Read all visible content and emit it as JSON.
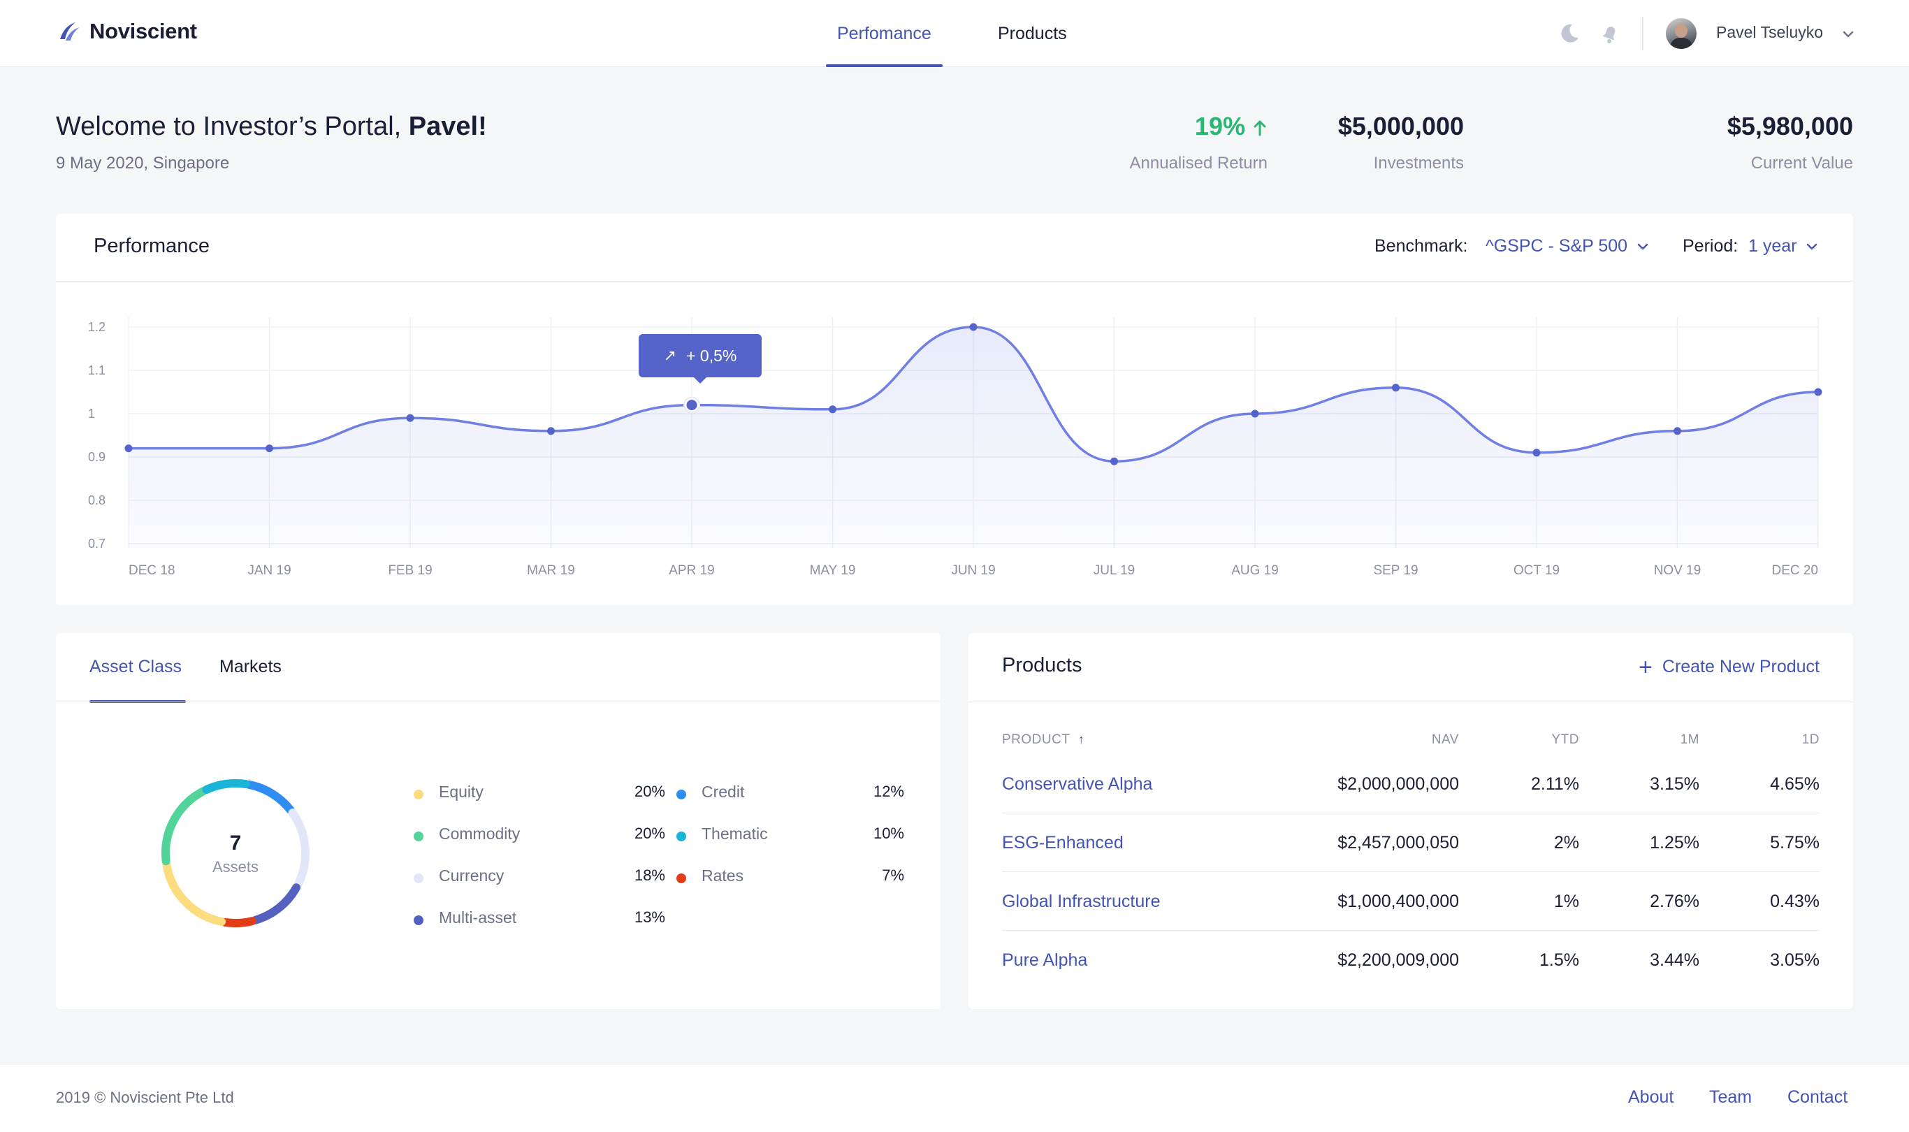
{
  "header": {
    "brand": "Noviscient",
    "nav": [
      {
        "label": "Perfomance",
        "active": true
      },
      {
        "label": "Products",
        "active": false
      }
    ],
    "icons": [
      "moon-icon",
      "bell-icon",
      "chevron-down-icon"
    ],
    "user_name": "Pavel Tseluyko"
  },
  "welcome": {
    "title_prefix": "Welcome to Investor’s Portal, ",
    "title_name": "Pavel!",
    "subtitle": "9 May 2020, Singapore"
  },
  "stats": [
    {
      "value": "19%",
      "label": "Annualised Return"
    },
    {
      "value": "$5,000,000",
      "label": "Investments"
    },
    {
      "value": "$5,980,000",
      "label": "Current Value"
    }
  ],
  "performance": {
    "title": "Performance",
    "benchmark_label": "Benchmark:",
    "benchmark_value": "^GSPC - S&P 500",
    "period_label": "Period:",
    "period_value": "1 year",
    "tooltip": "+ 0,5%"
  },
  "chart_data": {
    "type": "area",
    "title": "Performance",
    "xlabel": "",
    "ylabel": "",
    "categories": [
      "DEC 18",
      "JAN 19",
      "FEB 19",
      "MAR 19",
      "APR 19",
      "MAY 19",
      "JUN 19",
      "JUL 19",
      "AUG 19",
      "SEP 19",
      "OCT 19",
      "NOV 19",
      "DEC 20"
    ],
    "values": [
      0.92,
      0.92,
      0.99,
      0.96,
      1.02,
      1.01,
      1.2,
      0.89,
      1.0,
      1.06,
      0.91,
      0.96,
      1.05
    ],
    "y_ticks": [
      "0.7",
      "0.8",
      "0.9",
      "1",
      "1.1",
      "1.2"
    ],
    "ylim": [
      0.7,
      1.2
    ],
    "grid": true,
    "highlight_index": 4,
    "color": "#6f7fe3"
  },
  "assets": {
    "tabs": [
      {
        "label": "Asset Class",
        "active": true
      },
      {
        "label": "Markets",
        "active": false
      }
    ],
    "total": "7",
    "total_label": "Assets",
    "items": [
      {
        "name": "Equity",
        "pct": "20%",
        "value": 20,
        "color": "#fbdc7f"
      },
      {
        "name": "Commodity",
        "pct": "20%",
        "value": 20,
        "color": "#52d39a"
      },
      {
        "name": "Currency",
        "pct": "18%",
        "value": 18,
        "color": "#e3e6f8"
      },
      {
        "name": "Multi-asset",
        "pct": "13%",
        "value": 13,
        "color": "#5461c0"
      },
      {
        "name": "Credit",
        "pct": "12%",
        "value": 12,
        "color": "#2f8cf0"
      },
      {
        "name": "Thematic",
        "pct": "10%",
        "value": 10,
        "color": "#19b4d8"
      },
      {
        "name": "Rates",
        "pct": "7%",
        "value": 7,
        "color": "#e23d16"
      }
    ]
  },
  "products": {
    "title": "Products",
    "create_label": "Create New Product",
    "columns": [
      "PRODUCT",
      "NAV",
      "YTD",
      "1M",
      "1D"
    ],
    "rows": [
      {
        "name": "Conservative Alpha",
        "nav": "$2,000,000,000",
        "ytd": "2.11%",
        "m1": "3.15%",
        "d1": "4.65%"
      },
      {
        "name": "ESG-Enhanced",
        "nav": "$2,457,000,050",
        "ytd": "2%",
        "m1": "1.25%",
        "d1": "5.75%"
      },
      {
        "name": "Global Infrastructure",
        "nav": "$1,000,400,000",
        "ytd": "1%",
        "m1": "2.76%",
        "d1": "0.43%"
      },
      {
        "name": "Pure Alpha",
        "nav": "$2,200,009,000",
        "ytd": "1.5%",
        "m1": "3.44%",
        "d1": "3.05%"
      }
    ]
  },
  "footer": {
    "copyright": "2019 © Noviscient Pte Ltd",
    "links": [
      "About",
      "Team",
      "Contact"
    ]
  }
}
